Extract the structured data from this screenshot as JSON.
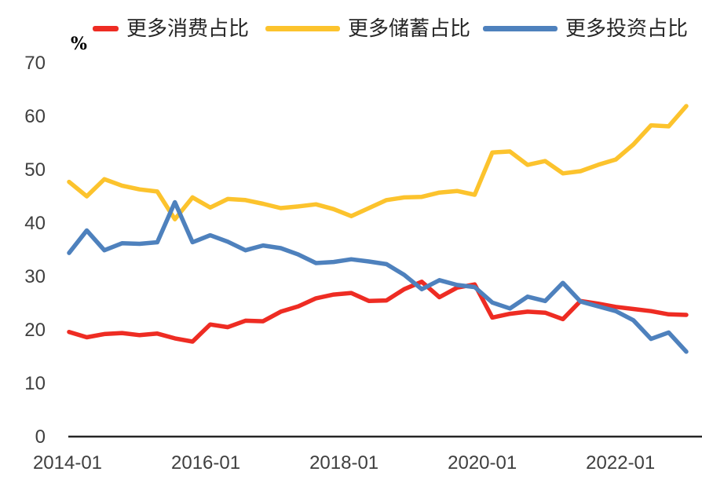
{
  "legend": {
    "items": [
      {
        "key": "consumption",
        "label": "更多消费占比",
        "color": "#ee2c23"
      },
      {
        "key": "savings",
        "label": "更多储蓄占比",
        "color": "#fcc32d"
      },
      {
        "key": "investment",
        "label": "更多投资占比",
        "color": "#4e81bd"
      }
    ]
  },
  "chart_data": {
    "type": "line",
    "title": "",
    "unit_label": "%",
    "grid": false,
    "legend_position": "top",
    "ylim": [
      0,
      70
    ],
    "y_ticks": [
      0,
      10,
      20,
      30,
      40,
      50,
      60,
      70
    ],
    "x": [
      "2014Q1",
      "2014Q2",
      "2014Q3",
      "2014Q4",
      "2015Q1",
      "2015Q2",
      "2015Q3",
      "2015Q4",
      "2016Q1",
      "2016Q2",
      "2016Q3",
      "2016Q4",
      "2017Q1",
      "2017Q2",
      "2017Q3",
      "2017Q4",
      "2018Q1",
      "2018Q2",
      "2018Q3",
      "2018Q4",
      "2019Q1",
      "2019Q2",
      "2019Q3",
      "2019Q4",
      "2020Q1",
      "2020Q2",
      "2020Q3",
      "2020Q4",
      "2021Q1",
      "2021Q2",
      "2021Q3",
      "2021Q4",
      "2022Q1",
      "2022Q2",
      "2022Q3",
      "2022Q4"
    ],
    "x_tick_labels": [
      "2014-01",
      "2016-01",
      "2018-01",
      "2020-01",
      "2022-01"
    ],
    "x_tick_indices": [
      0,
      8,
      16,
      24,
      32
    ],
    "series": [
      {
        "key": "consumption",
        "name": "更多消费占比",
        "color": "#ee2c23",
        "values": [
          19.6,
          18.6,
          19.2,
          19.4,
          19.0,
          19.3,
          18.4,
          17.8,
          21.0,
          20.5,
          21.7,
          21.6,
          23.4,
          24.4,
          25.9,
          26.6,
          26.9,
          25.4,
          25.5,
          27.6,
          29.0,
          26.1,
          27.9,
          28.5,
          22.3,
          23.0,
          23.4,
          23.2,
          22.0,
          25.4,
          24.9,
          24.3,
          23.9,
          23.5,
          22.9,
          22.8
        ]
      },
      {
        "key": "savings",
        "name": "更多储蓄占比",
        "color": "#fcc32d",
        "values": [
          47.7,
          45.0,
          48.2,
          47.0,
          46.3,
          45.9,
          40.7,
          44.8,
          42.9,
          44.5,
          44.3,
          43.6,
          42.8,
          43.1,
          43.5,
          42.6,
          41.3,
          42.8,
          44.3,
          44.8,
          44.9,
          45.7,
          46.0,
          45.3,
          53.2,
          53.4,
          50.9,
          51.6,
          49.3,
          49.7,
          50.9,
          51.9,
          54.7,
          58.3,
          58.1,
          61.9
        ]
      },
      {
        "key": "investment",
        "name": "更多投资占比",
        "color": "#4e81bd",
        "values": [
          34.4,
          38.6,
          34.9,
          36.2,
          36.1,
          36.4,
          43.9,
          36.4,
          37.7,
          36.5,
          34.9,
          35.8,
          35.3,
          34.1,
          32.5,
          32.7,
          33.2,
          32.8,
          32.3,
          30.3,
          27.6,
          29.3,
          28.4,
          28.0,
          25.1,
          24.0,
          26.2,
          25.4,
          28.8,
          25.3,
          24.4,
          23.5,
          21.8,
          18.3,
          19.5,
          15.9
        ]
      }
    ]
  }
}
